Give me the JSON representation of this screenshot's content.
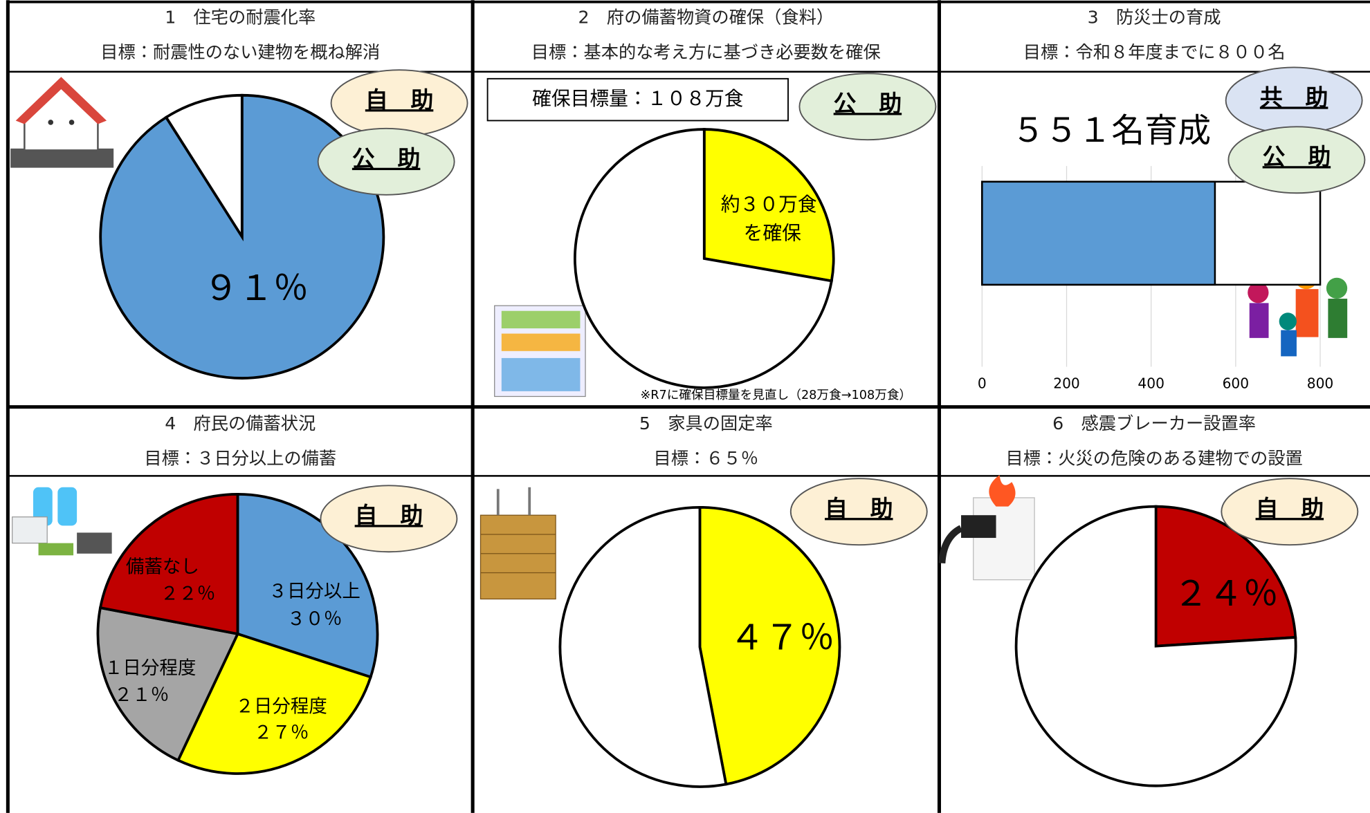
{
  "chart_data": [
    {
      "type": "pie",
      "title": "1　住宅の耐震化率",
      "subtitle": "目標：耐震性のない建物を概ね解消",
      "badges": [
        "自　助",
        "公　助"
      ],
      "values": [
        91,
        9
      ],
      "value_labels": [
        "９１％",
        null
      ],
      "colors": [
        "#5b9bd5",
        "#ffffff"
      ]
    },
    {
      "type": "pie",
      "title": "2　府の備蓄物資の確保（食料）",
      "subtitle": "目標：基本的な考え方に基づき必要数を確保",
      "badges": [
        "公　助"
      ],
      "annotations": [
        "確保目標量：１０８万食",
        "※R7に確保目標量を見直し（28万食→108万食）"
      ],
      "values": [
        30,
        78
      ],
      "value_labels": [
        [
          "約３０万食",
          "を確保"
        ],
        null
      ],
      "colors": [
        "#ffff00",
        "#ffffff"
      ]
    },
    {
      "type": "hbar",
      "title": "3　防災士の育成",
      "subtitle": "目標：令和８年度までに８００名",
      "badges": [
        "共　助",
        "公　助"
      ],
      "annotations": [
        "５５１名育成"
      ],
      "values": [
        551
      ],
      "target": 800,
      "color": "#5b9bd5",
      "xlim": [
        0,
        800
      ],
      "xticks": [
        0,
        200,
        400,
        600,
        800
      ],
      "grid": true
    },
    {
      "type": "pie",
      "title": "4　府民の備蓄状況",
      "subtitle": "目標：３日分以上の備蓄",
      "badges": [
        "自　助"
      ],
      "categories": [
        "３日分以上",
        "２日分程度",
        "１日分程度",
        "備蓄なし"
      ],
      "values": [
        30,
        27,
        21,
        22
      ],
      "value_labels": [
        "３０％",
        "２７％",
        "２１％",
        "２２％"
      ],
      "colors": [
        "#5b9bd5",
        "#ffff00",
        "#a5a5a5",
        "#c00000"
      ]
    },
    {
      "type": "pie",
      "title": "5　家具の固定率",
      "subtitle": "目標：６５％",
      "badges": [
        "自　助"
      ],
      "values": [
        47,
        53
      ],
      "value_labels": [
        "４７％",
        null
      ],
      "colors": [
        "#ffff00",
        "#ffffff"
      ]
    },
    {
      "type": "pie",
      "title": "6　感震ブレーカー設置率",
      "subtitle": "目標：火災の危険のある建物での設置",
      "badges": [
        "自　助"
      ],
      "values": [
        24,
        76
      ],
      "value_labels": [
        "２４％",
        null
      ],
      "colors": [
        "#c00000",
        "#ffffff"
      ]
    }
  ]
}
